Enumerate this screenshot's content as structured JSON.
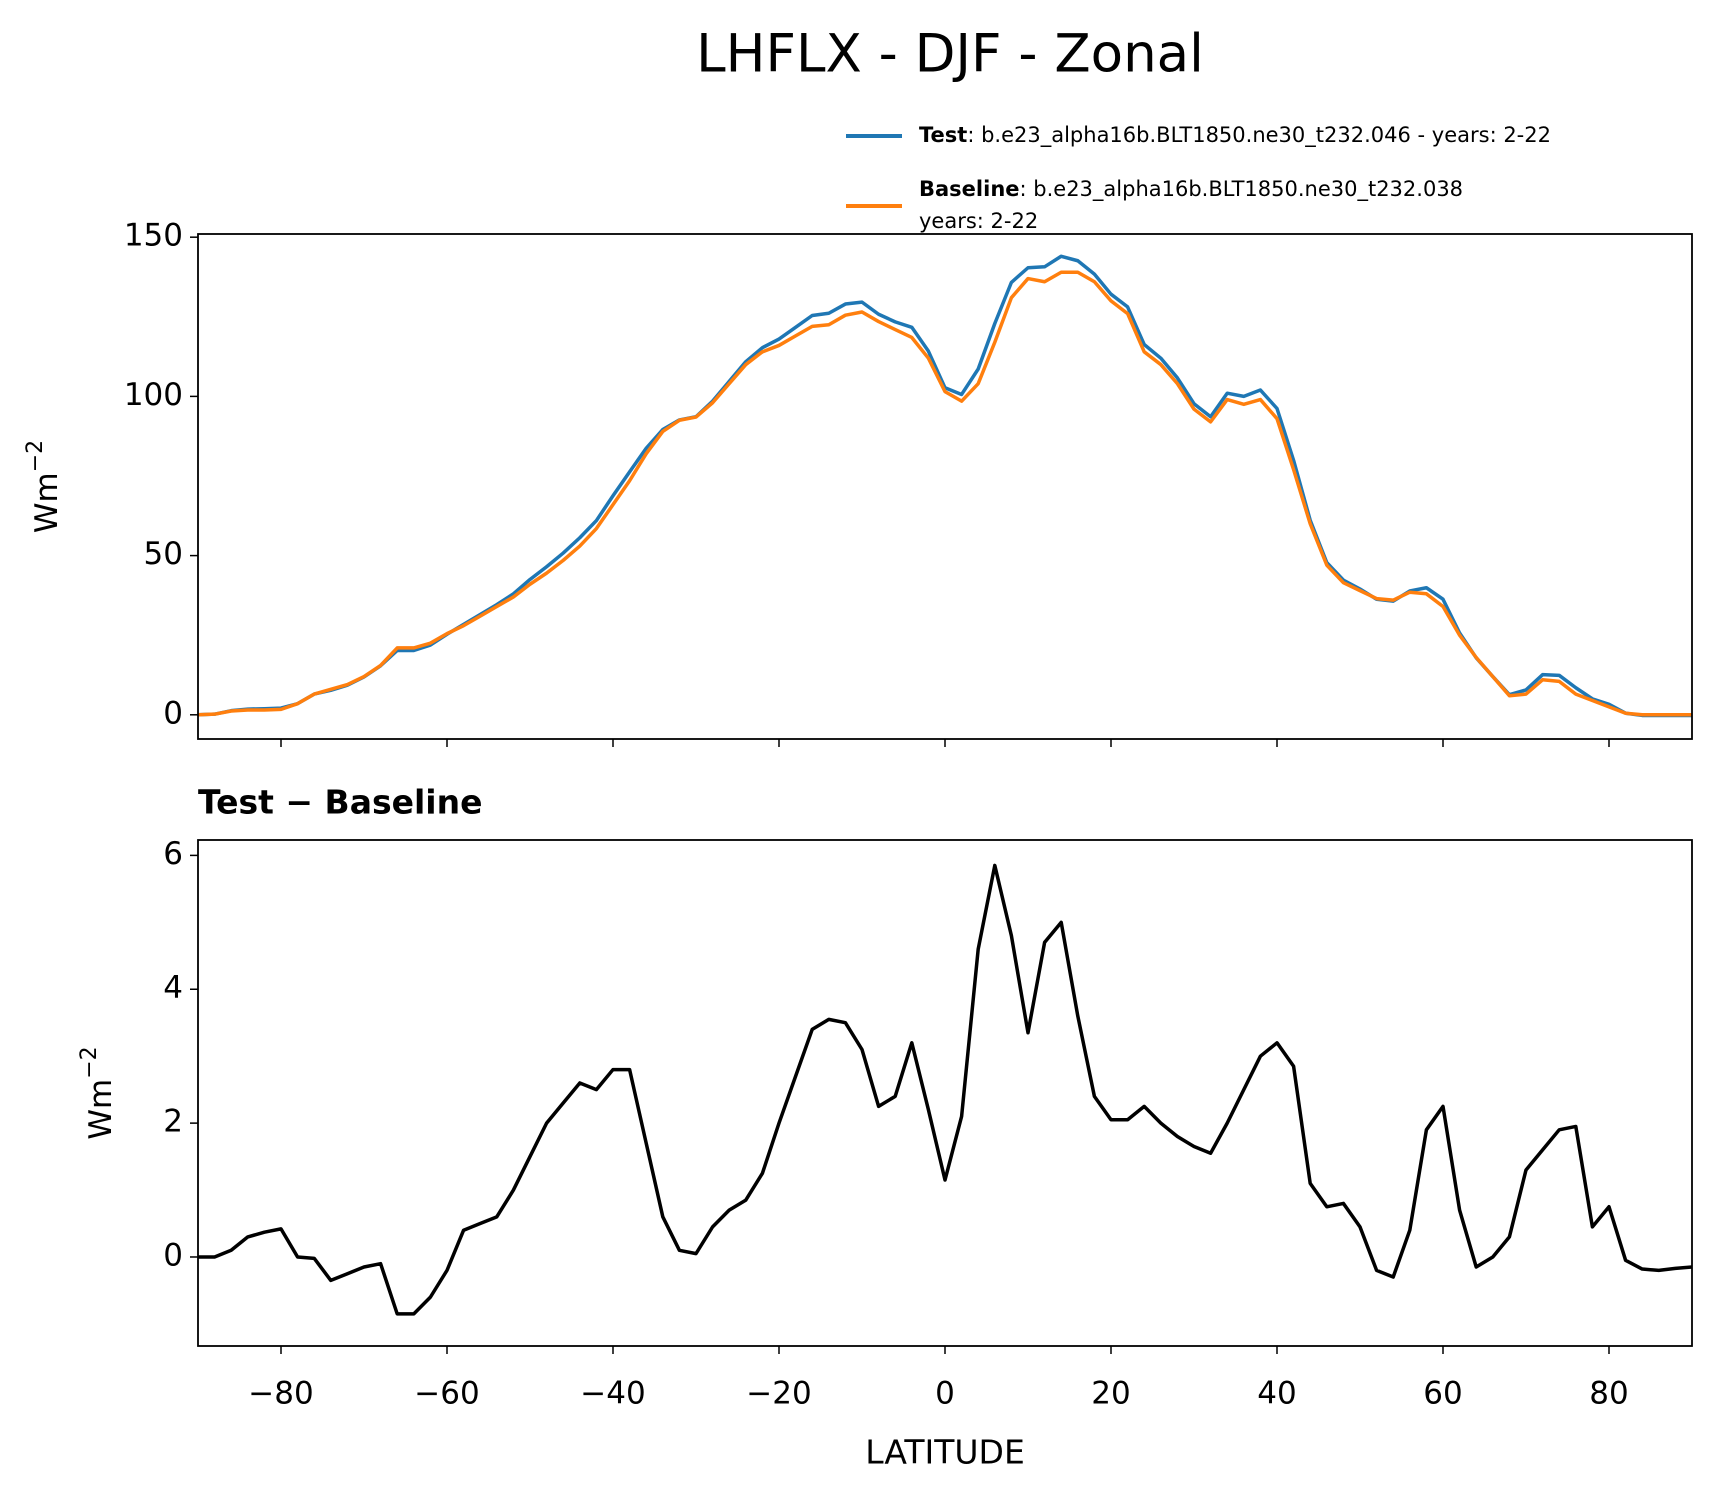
{
  "title": "LHFLX - DJF - Zonal",
  "chart_data": [
    {
      "type": "line",
      "ylabel": "Wm",
      "ylabel_exponent": "−2",
      "x": [
        -90,
        -88,
        -86,
        -84,
        -82,
        -80,
        -78,
        -76,
        -74,
        -72,
        -70,
        -68,
        -66,
        -64,
        -62,
        -60,
        -58,
        -56,
        -54,
        -52,
        -50,
        -48,
        -46,
        -44,
        -42,
        -40,
        -38,
        -36,
        -34,
        -32,
        -30,
        -28,
        -26,
        -24,
        -22,
        -20,
        -18,
        -16,
        -14,
        -12,
        -10,
        -8,
        -6,
        -4,
        -2,
        0,
        2,
        4,
        6,
        8,
        10,
        12,
        14,
        16,
        18,
        20,
        22,
        24,
        26,
        28,
        30,
        32,
        34,
        36,
        38,
        40,
        42,
        44,
        46,
        48,
        50,
        52,
        54,
        56,
        58,
        60,
        62,
        64,
        66,
        68,
        70,
        72,
        74,
        76,
        78,
        80,
        82,
        84,
        86,
        88,
        90
      ],
      "series": [
        {
          "name": "Test",
          "detail": [
            ": b.e23_alpha16b.BLT1850.ne30_t232.046 - years: 2-22"
          ],
          "color": "#1f77b4",
          "values": [
            0,
            0.2,
            1.3,
            1.8,
            1.9,
            2.1,
            3.5,
            6.5,
            7.7,
            9.3,
            11.9,
            15.4,
            20.2,
            20.2,
            21.9,
            25.3,
            28.4,
            31.5,
            34.6,
            38,
            42.5,
            46.5,
            50.8,
            55.6,
            61,
            68.8,
            76.3,
            83.7,
            89.6,
            92.6,
            93.6,
            98.5,
            104.7,
            110.9,
            115.3,
            118,
            121.7,
            125.4,
            126.1,
            129,
            129.6,
            125.8,
            123.4,
            121.7,
            114.2,
            102.7,
            100.6,
            108.6,
            122.9,
            135.8,
            140.4,
            140.7,
            144,
            142.6,
            138.4,
            132.1,
            128.1,
            116.3,
            112,
            105.8,
            97.7,
            93.6,
            101,
            100,
            102,
            96.2,
            79.9,
            61.1,
            47.8,
            42.3,
            39.5,
            36.3,
            35.7,
            38.9,
            39.9,
            36.3,
            25.7,
            17.9,
            12,
            6.3,
            7.8,
            12.6,
            12.4,
            8.5,
            5,
            3.3,
            0.5,
            -0.2,
            -0.2,
            -0.2,
            -0.2
          ]
        },
        {
          "name": "Baseline",
          "detail": [
            ": b.e23_alpha16b.BLT1850.ne30_t232.038",
            "years: 2-22"
          ],
          "color": "#ff7f0e",
          "values": [
            0,
            0.2,
            1.2,
            1.5,
            1.5,
            1.7,
            3.5,
            6.5,
            8,
            9.5,
            12,
            15.5,
            21,
            21,
            22.5,
            25.5,
            28,
            31,
            34,
            37,
            41,
            44.5,
            48.5,
            53,
            58.5,
            66,
            73.5,
            82,
            89,
            92.5,
            93.5,
            98,
            104,
            110,
            114,
            116,
            119,
            122,
            122.5,
            125.5,
            126.5,
            123.5,
            121,
            118.5,
            112,
            101.5,
            98.5,
            104,
            117,
            131,
            137,
            136,
            139,
            139,
            136,
            130,
            126,
            114,
            110,
            104,
            96,
            92,
            99,
            97.5,
            99,
            93,
            77,
            60,
            47,
            41.5,
            39,
            36.5,
            36,
            38.5,
            38,
            34,
            25,
            18,
            12,
            6,
            6.5,
            11,
            10.5,
            6.5,
            4.5,
            2.5,
            0.5,
            0,
            0,
            0,
            0
          ]
        }
      ],
      "xlim": [
        -90,
        90
      ],
      "ylim": [
        -7.6,
        151
      ],
      "yticks": [
        0,
        50,
        100,
        150
      ]
    },
    {
      "type": "line",
      "title": "Test − Baseline",
      "xlabel": "LATITUDE",
      "ylabel": "Wm",
      "ylabel_exponent": "−2",
      "x": [
        -90,
        -88,
        -86,
        -84,
        -82,
        -80,
        -78,
        -76,
        -74,
        -72,
        -70,
        -68,
        -66,
        -64,
        -62,
        -60,
        -58,
        -56,
        -54,
        -52,
        -50,
        -48,
        -46,
        -44,
        -42,
        -40,
        -38,
        -36,
        -34,
        -32,
        -30,
        -28,
        -26,
        -24,
        -22,
        -20,
        -18,
        -16,
        -14,
        -12,
        -10,
        -8,
        -6,
        -4,
        -2,
        0,
        2,
        4,
        6,
        8,
        10,
        12,
        14,
        16,
        18,
        20,
        22,
        24,
        26,
        28,
        30,
        32,
        34,
        36,
        38,
        40,
        42,
        44,
        46,
        48,
        50,
        52,
        54,
        56,
        58,
        60,
        62,
        64,
        66,
        68,
        70,
        72,
        74,
        76,
        78,
        80,
        82,
        84,
        86,
        88,
        90
      ],
      "series": [
        {
          "color": "#000000",
          "values": [
            0,
            0,
            0.1,
            0.3,
            0.37,
            0.42,
            0,
            -0.02,
            -0.35,
            -0.25,
            -0.15,
            -0.1,
            -0.85,
            -0.85,
            -0.6,
            -0.2,
            0.4,
            0.5,
            0.6,
            1,
            1.5,
            2,
            2.3,
            2.6,
            2.5,
            2.8,
            2.8,
            1.7,
            0.6,
            0.1,
            0.05,
            0.45,
            0.7,
            0.85,
            1.25,
            2,
            2.7,
            3.4,
            3.55,
            3.5,
            3.1,
            2.25,
            2.4,
            3.2,
            2.2,
            1.15,
            2.1,
            4.6,
            5.85,
            4.8,
            3.35,
            4.7,
            5,
            3.6,
            2.4,
            2.05,
            2.05,
            2.25,
            2,
            1.8,
            1.65,
            1.55,
            2,
            2.5,
            3,
            3.2,
            2.85,
            1.1,
            0.75,
            0.8,
            0.45,
            -0.2,
            -0.3,
            0.4,
            1.9,
            2.25,
            0.7,
            -0.15,
            0,
            0.3,
            1.3,
            1.6,
            1.9,
            1.95,
            0.45,
            0.75,
            -0.05,
            -0.18,
            -0.2,
            -0.17,
            -0.15
          ]
        }
      ],
      "xlim": [
        -90,
        90
      ],
      "ylim": [
        -1.33,
        6.23
      ],
      "xticks": [
        {
          "value": -80,
          "label": "−80"
        },
        {
          "value": -60,
          "label": "−60"
        },
        {
          "value": -40,
          "label": "−40"
        },
        {
          "value": -20,
          "label": "−20"
        },
        0,
        20,
        40,
        60,
        80
      ],
      "yticks": [
        0,
        2,
        4,
        6
      ]
    }
  ]
}
